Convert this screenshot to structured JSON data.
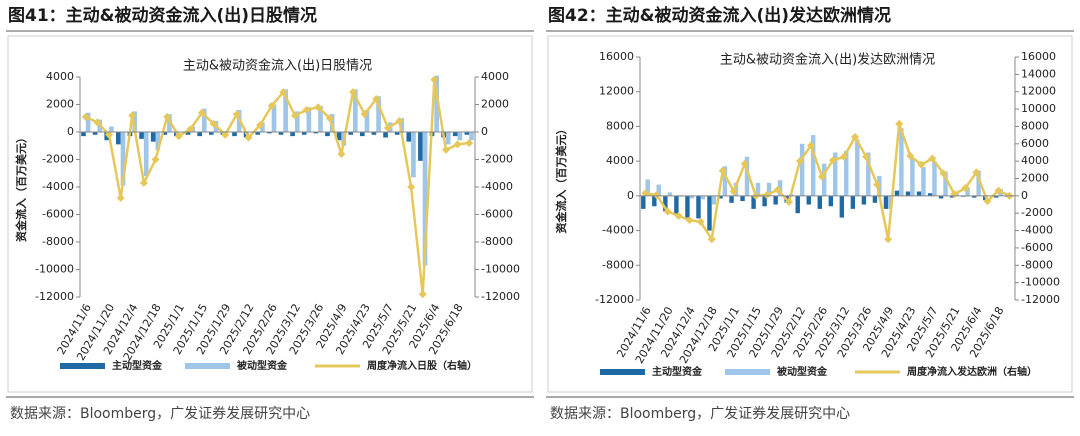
{
  "chart_data": [
    {
      "type": "bar",
      "figure_title": "图41：主动&被动资金流入(出)日股情况",
      "title": "主动&被动资金流入(出)日股情况",
      "ylabel": "资金流入（百万美元）",
      "source": "数据来源：Bloomberg，广发证券发展研究中心",
      "categories": [
        "2024/11/6",
        null,
        "2024/11/20",
        null,
        "2024/12/4",
        null,
        "2024/12/18",
        null,
        "2025/1/1",
        null,
        "2025/1/15",
        null,
        "2025/1/29",
        null,
        "2025/2/12",
        null,
        "2025/2/26",
        null,
        "2025/3/12",
        null,
        "2025/3/26",
        null,
        "2025/4/9",
        null,
        "2025/4/23",
        null,
        "2025/5/7",
        null,
        "2025/5/21",
        null,
        "2025/6/4",
        null,
        "2025/6/18",
        null
      ],
      "series": [
        {
          "name": "主动型资金",
          "color": "#1f6aa5",
          "values": [
            -300,
            -200,
            -600,
            -900,
            -300,
            -500,
            -700,
            -200,
            -300,
            -200,
            -300,
            -200,
            -200,
            -300,
            -400,
            -200,
            -100,
            -200,
            -300,
            -200,
            -100,
            -300,
            -600,
            -200,
            -300,
            -200,
            -400,
            -200,
            -700,
            -2100,
            -300,
            -400,
            -300,
            -200
          ]
        },
        {
          "name": "被动型资金",
          "color": "#9fc5e8",
          "values": [
            1400,
            900,
            400,
            -3900,
            1500,
            -3200,
            -1300,
            1300,
            0,
            400,
            1700,
            800,
            0,
            1600,
            0,
            700,
            2000,
            3100,
            1500,
            1800,
            1900,
            1300,
            -1000,
            3100,
            1600,
            2600,
            700,
            1000,
            -3300,
            -9700,
            4100,
            -900,
            -600,
            -600
          ]
        },
        {
          "name": "周度净流入日股（右轴）",
          "color": "#e6c85a",
          "axis": "y2",
          "values": [
            1100,
            700,
            -200,
            -4800,
            1200,
            -3700,
            -2000,
            1100,
            -300,
            200,
            1400,
            600,
            -200,
            1300,
            -400,
            500,
            1900,
            2900,
            1200,
            1600,
            1800,
            1000,
            -1600,
            2900,
            1300,
            2400,
            300,
            800,
            -4000,
            -11800,
            3800,
            -1300,
            -900,
            -800
          ]
        }
      ],
      "ylim": [
        -12000,
        4000
      ],
      "yticks": [
        -12000,
        -10000,
        -8000,
        -6000,
        -4000,
        -2000,
        0,
        2000,
        4000
      ],
      "y2lim": [
        -12000,
        4000
      ],
      "y2ticks": [
        -12000,
        -10000,
        -8000,
        -6000,
        -4000,
        -2000,
        0,
        2000,
        4000
      ]
    },
    {
      "type": "bar",
      "figure_title": "图42：主动&被动资金流入(出)发达欧洲情况",
      "title": "主动&被动资金流入(出)发达欧洲情况",
      "ylabel": "资金流入（百万美元）",
      "source": "数据来源：Bloomberg，广发证券发展研究中心",
      "categories": [
        "2024/11/6",
        null,
        "2024/11/20",
        null,
        "2024/12/4",
        null,
        "2024/12/18",
        null,
        "2025/1/1",
        null,
        "2025/1/15",
        null,
        "2025/1/29",
        null,
        "2025/2/12",
        null,
        "2025/2/26",
        null,
        "2025/3/12",
        null,
        "2025/3/26",
        null,
        "2025/4/9",
        null,
        "2025/4/23",
        null,
        "2025/5/7",
        null,
        "2025/5/21",
        null,
        "2025/6/4",
        null,
        "2025/6/18",
        null
      ],
      "series": [
        {
          "name": "主动型资金",
          "color": "#1f6aa5",
          "values": [
            -1500,
            -1200,
            -1800,
            -2200,
            -2500,
            -2600,
            -4000,
            -300,
            -800,
            -600,
            -1500,
            -1200,
            -1000,
            -800,
            -2000,
            -1000,
            -1500,
            -1200,
            -2500,
            -1500,
            -1000,
            -800,
            -1500,
            600,
            500,
            500,
            300,
            -300,
            -200,
            -100,
            -200,
            -500,
            -200,
            -100
          ]
        },
        {
          "name": "被动型资金",
          "color": "#9fc5e8",
          "values": [
            1900,
            1300,
            400,
            -100,
            -300,
            -400,
            -1000,
            3400,
            1500,
            4500,
            1500,
            1500,
            1800,
            200,
            6000,
            7000,
            3700,
            5000,
            5200,
            6500,
            5000,
            2300,
            -1500,
            7800,
            4300,
            3300,
            4000,
            2800,
            400,
            1000,
            2900,
            0,
            800,
            100
          ]
        },
        {
          "name": "周度净流入发达欧洲（右轴）",
          "color": "#e6c85a",
          "axis": "y2",
          "values": [
            300,
            100,
            -1800,
            -2300,
            -2800,
            -3000,
            -5000,
            2900,
            500,
            3700,
            0,
            100,
            700,
            -700,
            4000,
            5800,
            2200,
            4100,
            4500,
            6800,
            4500,
            1300,
            -5000,
            8300,
            4600,
            3600,
            4300,
            2600,
            200,
            900,
            2700,
            -600,
            600,
            0
          ]
        }
      ],
      "ylim": [
        -12000,
        16000
      ],
      "yticks": [
        -12000,
        -8000,
        -4000,
        0,
        4000,
        8000,
        12000,
        16000
      ],
      "y2lim": [
        -12000,
        16000
      ],
      "y2ticks": [
        -12000,
        -10000,
        -8000,
        -6000,
        -4000,
        -2000,
        0,
        2000,
        4000,
        6000,
        8000,
        10000,
        12000,
        14000,
        16000
      ]
    }
  ]
}
